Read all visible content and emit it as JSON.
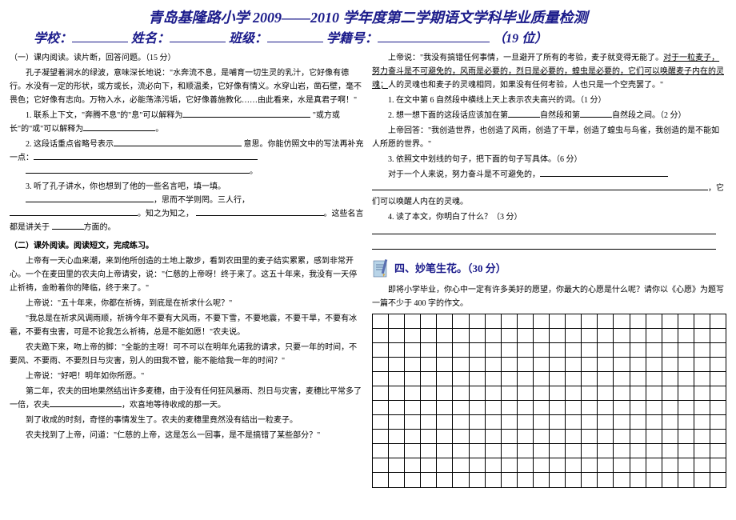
{
  "header": {
    "title": "青岛基隆路小学 2009——2010 学年度第二学期语文学科毕业质量检测",
    "school_label": "学校：",
    "name_label": "姓名：",
    "class_label": "班级：",
    "id_label": "学籍号：",
    "id_suffix": "（19 位）"
  },
  "left": {
    "s1_title": "（一）课内阅读。读片断，回答问题。（15 分）",
    "s1_p1": "孔子凝望着涧水的绿波，意味深长地说：\"水奔流不息，是哺育一切生灵的乳汁，它好像有德行。水没有一定的形状，或方或长，流必向下，和顺温柔，它好像有情义。水穿山岩，凿石壁，毫不畏色；它好像有志向。万物入水，必能荡涤污垢，它好像善施教化……由此看来，水是真君子啊！\"",
    "q1a": "1. 联系上下文，\"奔腾不息\"的\"息\"可以解释为",
    "q1b": "\"或方或长\"的\"或\"可以解释为",
    "q2a": "2. 这段话重点省略号表示",
    "q2b": "意思。你能仿照文中的写法再补充一点：",
    "q3a": "3. 听了孔子讲水，你也想到了他的一些名言吧，填一填。",
    "q3b": "，思而不学则罔。三人行，",
    "q3c": "。知之为知之，",
    "q3d": "。这些名言都是讲关于",
    "q3e": "方面的。",
    "s2_title": "（二）课外阅读。阅读短文，完成练习。",
    "s2_p1": "上帝有一天心血来潮，来到他所创造的土地上散步，看到农田里的麦子结实累累，感到非常开心。一个在麦田里的农夫向上帝请安，说：\"仁慈的上帝呀！终于来了。这五十年来，我没有一天停止祈祷，金盼着你的降临，终于来了。\"",
    "s2_p2": "上帝说：\"五十年来，你都在祈祷，到底是在祈求什么呢？\"",
    "s2_p3": "\"我总是在祈求风调雨顺，祈祷今年不要有大风雨，不要下雪，不要地震，不要干旱，不要有冰雹，不要有虫害，可是不论我怎么祈祷，总是不能如愿！\"农夫说。",
    "s2_p4": "农夫跪下来，吻上帝的脚：\"全能的主呀！可不可以在明年允诺我的请求，只要一年的时间，不要风、不要雨、不要烈日与灾害，别人的田我不管，能不能给我一年的时间？\"",
    "s2_p5": "上帝说：\"好吧！明年如你所愿。\"",
    "s2_p6": "第二年，农夫的田地果然结出许多麦穗，由于没有任何狂风暴雨、烈日与灾害，麦穗比平常多了一倍，农夫",
    "s2_p6b": "，欢喜地等待收成的那一天。",
    "s2_p7": "到了收成的时刻，奇怪的事情发生了。农夫的麦穗里竟然没有结出一粒麦子。",
    "s2_p8": "农夫找到了上帝，问道：\"仁慈的上帝，这是怎么一回事，是不是搞错了某些部分？\""
  },
  "right": {
    "r_p1a": "上帝说：\"我没有搞错任何事情，一旦避开了所有的考验，麦子就变得无能了。",
    "r_p1b": "对于一粒麦子，努力奋斗是不可避免的，风雨是必要的，烈日是必要的，蝗虫是必要的，它们可以唤醒麦子内在的灵魂；",
    "r_p1c": "人的灵魂也和麦子的灵魂相同，如果没有任何考验，人也只是一个空壳罢了。\"",
    "rq1": "1. 在文中第 6 自然段中横线上天上表示农夫高兴的词。（1 分）",
    "rq2a": "2. 想一想下面的这段话应该加在第",
    "rq2b": "自然段和第",
    "rq2c": "自然段之间。（2 分）",
    "rq3": "上帝回答：\"我创造世界，也创造了风雨，创造了干旱，创造了蝗虫与鸟雀，我创造的是不能如人所愿的世界。\"",
    "rq4": "3. 依照文中划线的句子，把下面的句子写具体。（6 分）",
    "rq4a": "对于一个人来说，努力奋斗是不可避免的，",
    "rq4b": "，它们可以唤醒人内在的灵魂。",
    "rq5": "4. 读了本文，你明白了什么？（3 分）",
    "sec4_title": "四、妙笔生花。（30 分）",
    "sec4_desc": "即将小学毕业，你心中一定有许多美好的愿望，你最大的心愿是什么呢？请你以《心愿》为题写一篇不少于 400 字的作文。"
  },
  "style": {
    "title_color": "#1a1a8a",
    "font_body": 10,
    "font_title": 18,
    "grid_cols": 22,
    "grid_rows": 12,
    "icon_colors": {
      "paper": "#b8d4e8",
      "pen": "#5a6fb0",
      "accent": "#d4a84a"
    }
  }
}
